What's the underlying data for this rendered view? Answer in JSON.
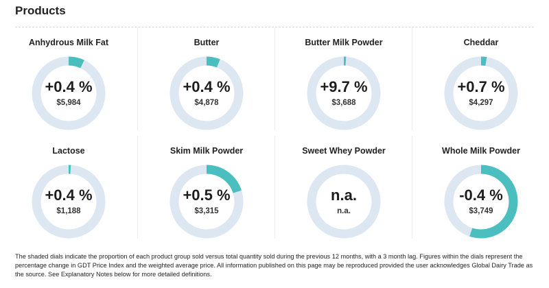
{
  "header": {
    "title": "Products"
  },
  "colors": {
    "track": "#dce7f2",
    "fill": "#4bbfbf"
  },
  "products": [
    {
      "name": "Anhydrous Milk Fat",
      "change": "+0.4 %",
      "price": "$5,984",
      "share": 0.07
    },
    {
      "name": "Butter",
      "change": "+0.4 %",
      "price": "$4,878",
      "share": 0.06
    },
    {
      "name": "Butter Milk Powder",
      "change": "+9.7 %",
      "price": "$3,688",
      "share": 0.01
    },
    {
      "name": "Cheddar",
      "change": "+0.7 %",
      "price": "$4,297",
      "share": 0.025
    },
    {
      "name": "Lactose",
      "change": "+0.4 %",
      "price": "$1,188",
      "share": 0.01
    },
    {
      "name": "Skim Milk Powder",
      "change": "+0.5 %",
      "price": "$3,315",
      "share": 0.2
    },
    {
      "name": "Sweet Whey Powder",
      "change": "n.a.",
      "price": "n.a.",
      "share": 0
    },
    {
      "name": "Whole Milk Powder",
      "change": "-0.4 %",
      "price": "$3,749",
      "share": 0.55
    }
  ],
  "footnote": "The shaded dials indicate the proportion of each product group sold versus total quantity sold during the previous 12 months, with a 3 month lag. Figures within the dials represent the percentage change in GDT Price Index and the weighted average price. All information published on this page may be reproduced provided the user acknowledges Global Dairy Trade as the source. See Explanatory Notes below for more detailed definitions."
}
